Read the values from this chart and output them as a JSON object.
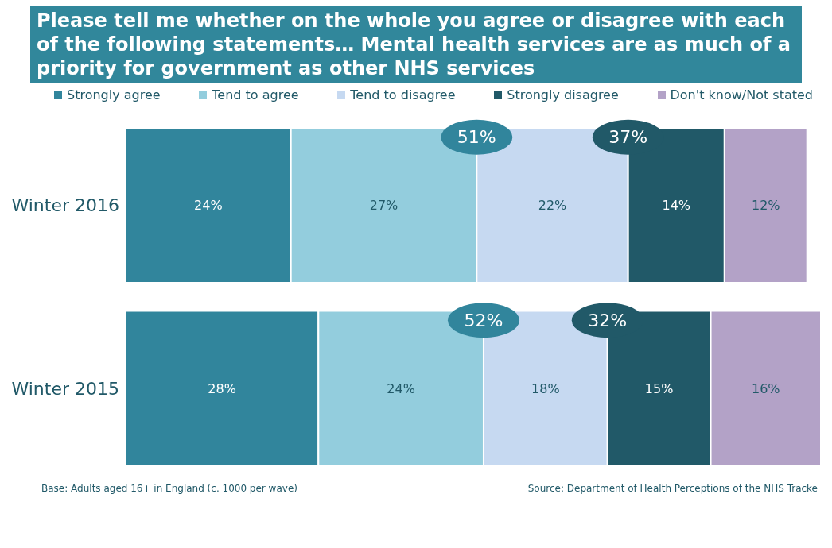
{
  "chart_data": {
    "type": "bar",
    "orientation": "horizontal",
    "stacked": true,
    "title": "Please tell me whether on the whole you agree or disagree with each of the following statements… Mental health services are as much of a priority for government as other NHS services",
    "categories": [
      "Winter 2016",
      "Winter 2015"
    ],
    "series": [
      {
        "name": "Strongly agree",
        "color": "#31859c",
        "values": [
          24,
          28
        ],
        "value_labels": [
          "24%",
          "28%"
        ]
      },
      {
        "name": "Tend to agree",
        "color": "#93cddd",
        "values": [
          27,
          24
        ],
        "value_labels": [
          "27%",
          "24%"
        ]
      },
      {
        "name": "Tend to disagree",
        "color": "#c6d9f1",
        "values": [
          22,
          18
        ],
        "value_labels": [
          "22%",
          "18%"
        ]
      },
      {
        "name": "Strongly disagree",
        "color": "#215968",
        "values": [
          14,
          15
        ],
        "value_labels": [
          "14%",
          "15%"
        ]
      },
      {
        "name": "Don't know/Not stated",
        "color": "#b3a2c7",
        "values": [
          12,
          16
        ],
        "value_labels": [
          "12%",
          "16%"
        ]
      }
    ],
    "legend": "top",
    "annotations": [
      "51%",
      "37%",
      "52%",
      "32%",
      "Base: Adults aged 16+ in England (c. 1000 per wave)",
      "Source: Department of Health Perceptions of the NHS Tracke"
    ]
  }
}
